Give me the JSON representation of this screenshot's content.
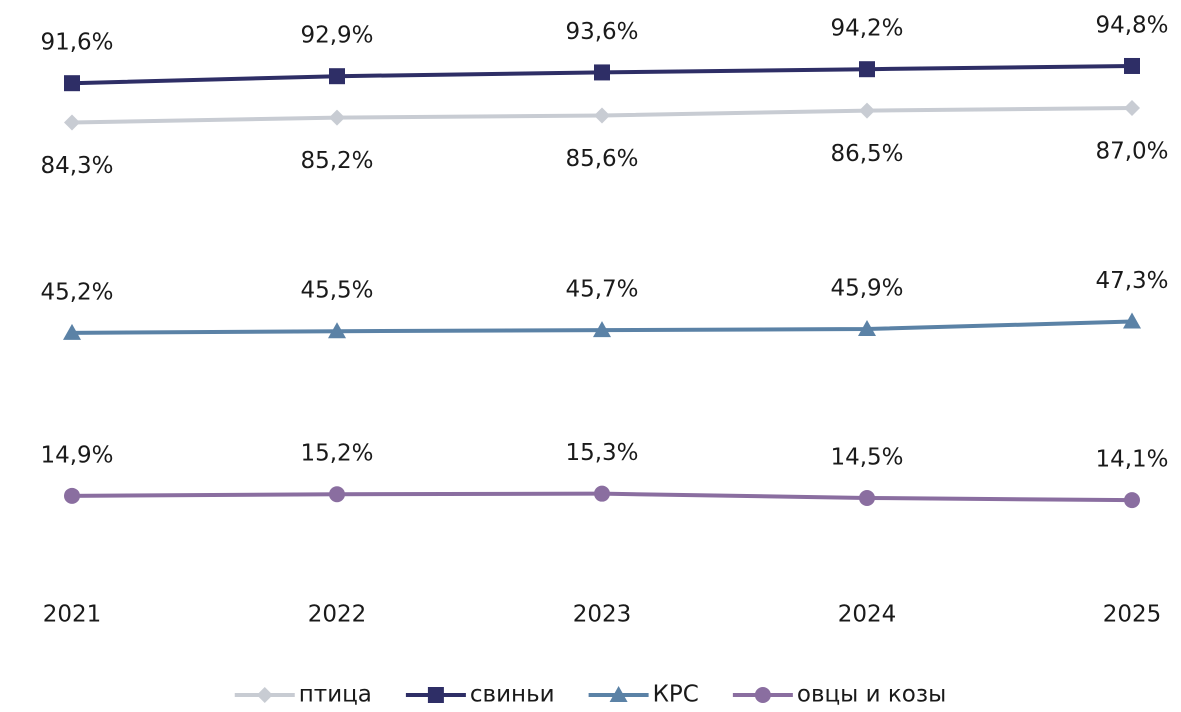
{
  "chart_data": {
    "type": "line",
    "categories": [
      "2021",
      "2022",
      "2023",
      "2024",
      "2025"
    ],
    "ylim": [
      0,
      100
    ],
    "series": [
      {
        "name": "птица",
        "color": "#c8ccd3",
        "marker": "diamond",
        "values": [
          84.3,
          85.2,
          85.6,
          86.5,
          87.0
        ],
        "value_labels": [
          "84,3%",
          "85,2%",
          "85,6%",
          "86,5%",
          "87,0%"
        ]
      },
      {
        "name": "свиньи",
        "color": "#2e2e66",
        "marker": "square",
        "values": [
          91.6,
          92.9,
          93.6,
          94.2,
          94.8
        ],
        "value_labels": [
          "91,6%",
          "92,9%",
          "93,6%",
          "94,2%",
          "94,8%"
        ]
      },
      {
        "name": "КРС",
        "color": "#5b82a6",
        "marker": "triangle",
        "values": [
          45.2,
          45.5,
          45.7,
          45.9,
          47.3
        ],
        "value_labels": [
          "45,2%",
          "45,5%",
          "45,7%",
          "45,9%",
          "47,3%"
        ]
      },
      {
        "name": "овцы и козы",
        "color": "#8a6ea0",
        "marker": "circle",
        "values": [
          14.9,
          15.2,
          15.3,
          14.5,
          14.1
        ],
        "value_labels": [
          "14,9%",
          "15,2%",
          "15,3%",
          "14,5%",
          "14,1%"
        ]
      }
    ],
    "legend": "bottom"
  }
}
